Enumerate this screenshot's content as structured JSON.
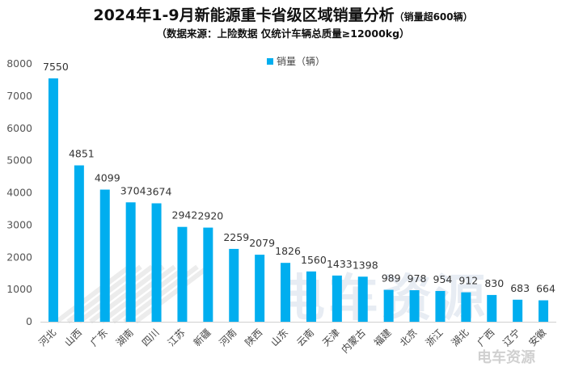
{
  "chart_data": {
    "type": "bar",
    "title": "2024年1-9月新能源重卡省级区域销量分析",
    "title_suffix": "（销量超600辆）",
    "subtitle": "（数据来源：上险数据  仅统计车辆总质量≥12000kg）",
    "xlabel": "",
    "ylabel": "",
    "ylim": [
      0,
      8000
    ],
    "yticks": [
      0,
      1000,
      2000,
      3000,
      4000,
      5000,
      6000,
      7000,
      8000
    ],
    "grid": false,
    "legend_position": "top-center",
    "categories": [
      "河北",
      "山西",
      "广东",
      "湖南",
      "四川",
      "江苏",
      "新疆",
      "河南",
      "陕西",
      "山东",
      "云南",
      "天津",
      "内蒙古",
      "福建",
      "北京",
      "浙江",
      "湖北",
      "广西",
      "辽宁",
      "安徽"
    ],
    "series": [
      {
        "name": "销量（辆）",
        "color": "#00aeef",
        "values": [
          7550,
          4851,
          4099,
          3704,
          3674,
          2942,
          2920,
          2259,
          2079,
          1826,
          1560,
          1433,
          1398,
          989,
          978,
          954,
          912,
          830,
          683,
          664
        ]
      }
    ]
  },
  "watermark": {
    "main": "电车资源",
    "corner": "电车资源"
  }
}
